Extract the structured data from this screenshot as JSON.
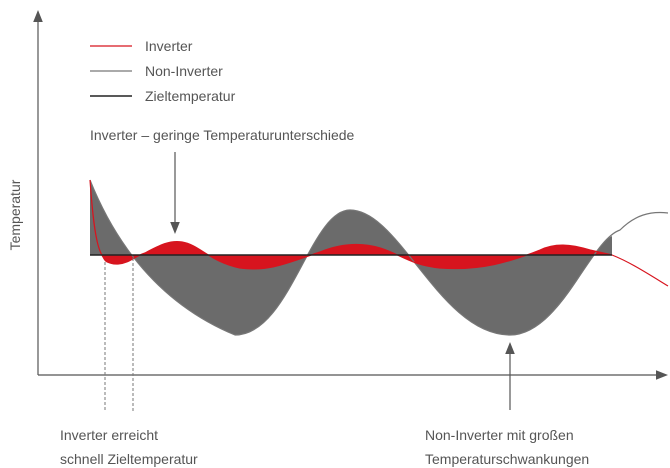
{
  "axis_label": "Temperatur",
  "legend": [
    "Inverter",
    "Non-Inverter",
    "Zieltemperatur"
  ],
  "annotations": {
    "top": "Inverter – geringe Temperaturunterschiede",
    "bottom_left": [
      "Inverter erreicht",
      "schnell Zieltemperatur"
    ],
    "bottom_right": [
      "Non-Inverter mit großen",
      "Temperaturschwankungen"
    ]
  }
}
